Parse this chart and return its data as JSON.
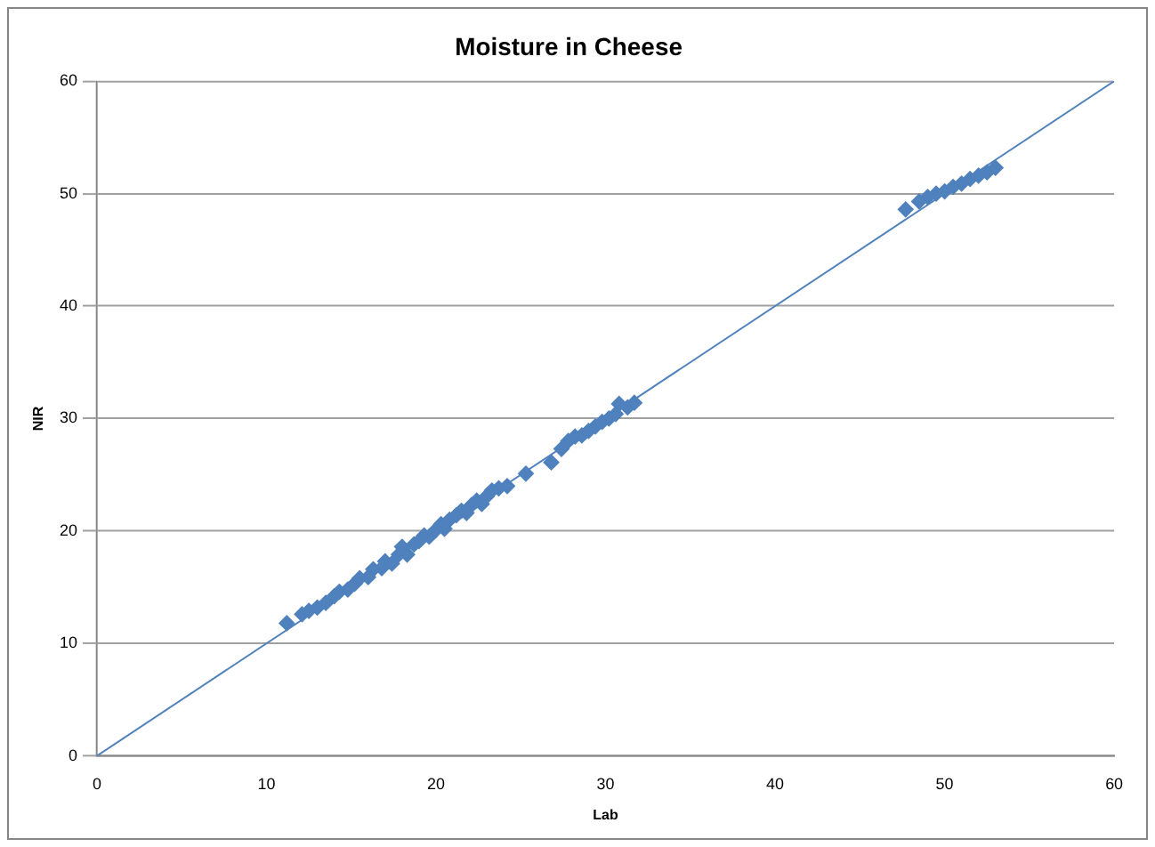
{
  "chart_data": {
    "type": "scatter",
    "title": "Moisture in Cheese",
    "xlabel": "Lab",
    "ylabel": "NIR",
    "xlim": [
      0,
      60
    ],
    "ylim": [
      0,
      60
    ],
    "xticks": [
      0,
      10,
      20,
      30,
      40,
      50,
      60
    ],
    "yticks": [
      0,
      10,
      20,
      30,
      40,
      50,
      60
    ],
    "grid": "y",
    "legend": false,
    "marker": "diamond",
    "series": [
      {
        "type": "scatter",
        "color": "#4f81bd",
        "x": [
          11.2,
          12.1,
          12.5,
          13,
          13.5,
          14,
          14.3,
          14.8,
          15.2,
          15.5,
          16,
          16.3,
          16.8,
          17,
          17.4,
          17.8,
          18,
          18.3,
          18.7,
          19,
          19.3,
          19.6,
          20,
          20.3,
          20.5,
          20.8,
          21.2,
          21.5,
          21.8,
          22.1,
          22.4,
          22.7,
          23,
          23.3,
          23.7,
          24.2,
          25.3,
          26.8,
          27.4,
          27.8,
          28.2,
          28.6,
          29,
          29.4,
          29.8,
          30.2,
          30.6,
          30.8,
          31.3,
          31.7,
          47.7,
          48.5,
          49,
          49.5,
          50,
          50.5,
          51,
          51.5,
          52,
          52.5,
          53
        ],
        "values": [
          11.8,
          12.6,
          12.9,
          13.2,
          13.6,
          14.2,
          14.6,
          14.8,
          15.3,
          15.8,
          15.9,
          16.6,
          16.7,
          17.3,
          17.1,
          17.9,
          18.6,
          17.9,
          18.8,
          19.1,
          19.6,
          19.5,
          20.1,
          20.6,
          20.2,
          21,
          21.4,
          21.8,
          21.6,
          22.3,
          22.7,
          22.4,
          23.1,
          23.6,
          23.8,
          24,
          25.1,
          26.1,
          27.3,
          28,
          28.4,
          28.5,
          28.9,
          29.3,
          29.7,
          30,
          30.4,
          31.3,
          31,
          31.4,
          48.6,
          49.3,
          49.7,
          50,
          50.2,
          50.6,
          50.9,
          51.3,
          51.6,
          51.9,
          52.3
        ]
      },
      {
        "type": "line",
        "color": "#4f81bd",
        "x": [
          0,
          60
        ],
        "values": [
          0,
          60
        ],
        "marker": "none"
      }
    ]
  }
}
